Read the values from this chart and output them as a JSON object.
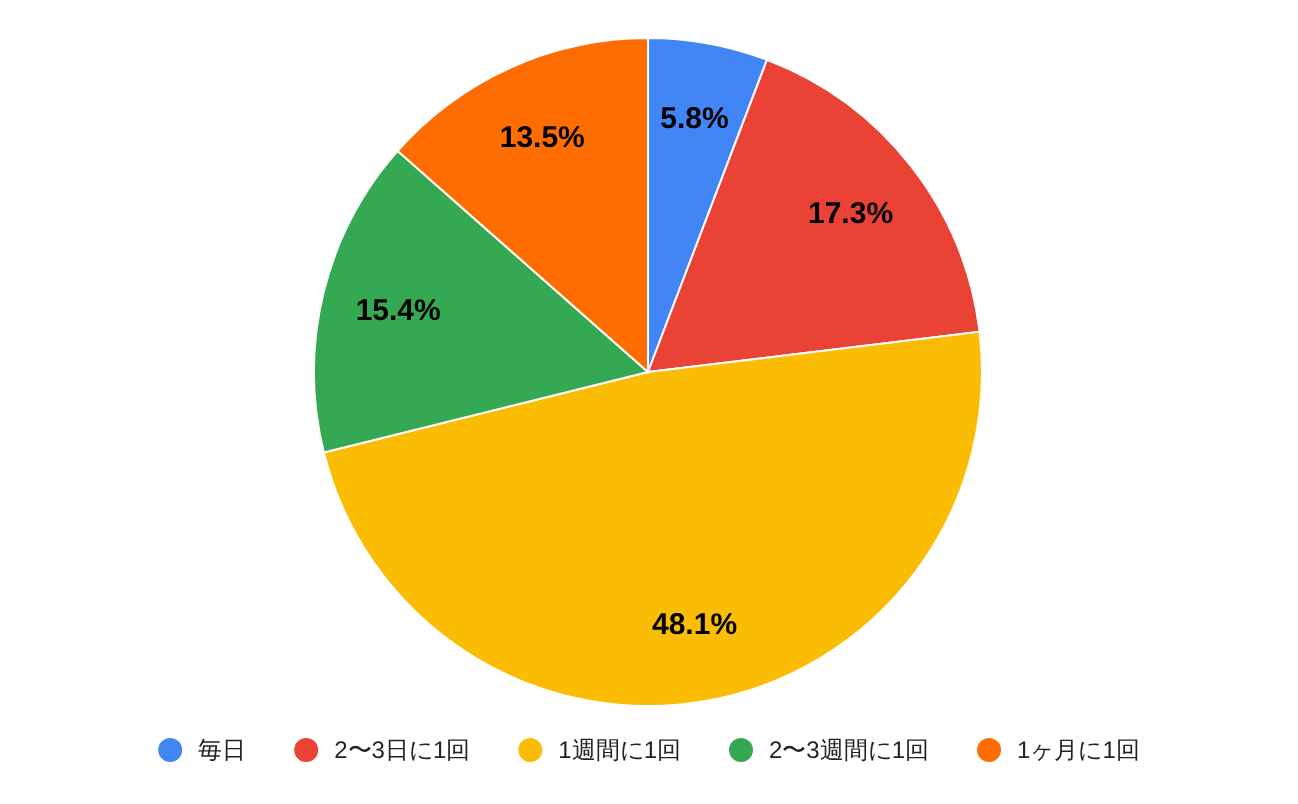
{
  "chart_data": {
    "type": "pie",
    "categories": [
      "毎日",
      "2〜3日に1回",
      "1週間に1回",
      "2〜3週間に1回",
      "1ヶ月に1回"
    ],
    "values": [
      5.8,
      17.3,
      48.1,
      15.4,
      13.5
    ],
    "colors": [
      "#4285f4",
      "#ea4335",
      "#fbbc04",
      "#34a853",
      "#ff6d01"
    ],
    "value_labels": [
      "5.8%",
      "17.3%",
      "48.1%",
      "15.4%",
      "13.5%"
    ],
    "legend": "bottom"
  }
}
